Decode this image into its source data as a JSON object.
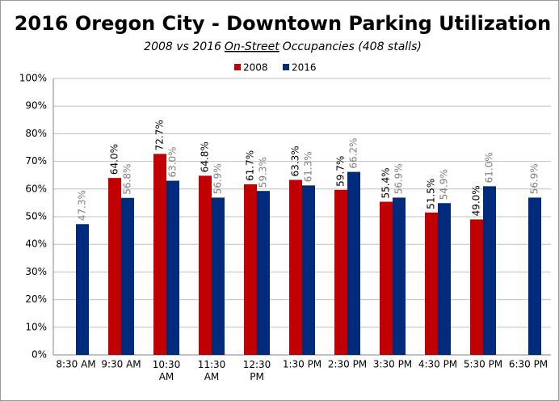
{
  "chart_data": {
    "type": "bar",
    "title": "2016 Oregon City - Downtown Parking Utilization",
    "subtitle": [
      "2008 vs 2016",
      "On-Street",
      "Occupancies (408 stalls)"
    ],
    "categories": [
      "8:30 AM",
      "9:30 AM",
      "10:30 AM",
      "11:30 AM",
      "12:30 PM",
      "1:30 PM",
      "2:30 PM",
      "3:30 PM",
      "4:30 PM",
      "5:30 PM",
      "6:30 PM"
    ],
    "series": [
      {
        "name": "2008",
        "color": "#c00000",
        "label_color": "#000000",
        "values": [
          null,
          64.0,
          72.7,
          64.8,
          61.7,
          63.3,
          59.7,
          55.4,
          51.5,
          49.0,
          null
        ],
        "value_labels": [
          null,
          "64.0%",
          "72.7%",
          "64.8%",
          "61.7%",
          "63.3%",
          "59.7%",
          "55.4%",
          "51.5%",
          "49.0%",
          null
        ]
      },
      {
        "name": "2016",
        "color": "#002b7a",
        "label_color": "#7f7f7f",
        "values": [
          47.3,
          56.8,
          63.0,
          56.9,
          59.3,
          61.3,
          66.2,
          56.9,
          54.9,
          61.0,
          56.9
        ],
        "value_labels": [
          "47.3%",
          "56.8%",
          "63.0%",
          "56.9%",
          "59.3%",
          "61.3%",
          "66.2%",
          "56.9%",
          "54.9%",
          "61.0%",
          "56.9%"
        ]
      }
    ],
    "ylim": [
      0,
      100
    ],
    "yticks": [
      {
        "value": 0,
        "label": "0%"
      },
      {
        "value": 10,
        "label": "10%"
      },
      {
        "value": 20,
        "label": "20%"
      },
      {
        "value": 30,
        "label": "30%"
      },
      {
        "value": 40,
        "label": "40%"
      },
      {
        "value": 50,
        "label": "50%"
      },
      {
        "value": 60,
        "label": "60%"
      },
      {
        "value": 70,
        "label": "70%"
      },
      {
        "value": 80,
        "label": "80%"
      },
      {
        "value": 90,
        "label": "90%"
      },
      {
        "value": 100,
        "label": "100%"
      }
    ],
    "grid": true,
    "legend": "top"
  }
}
